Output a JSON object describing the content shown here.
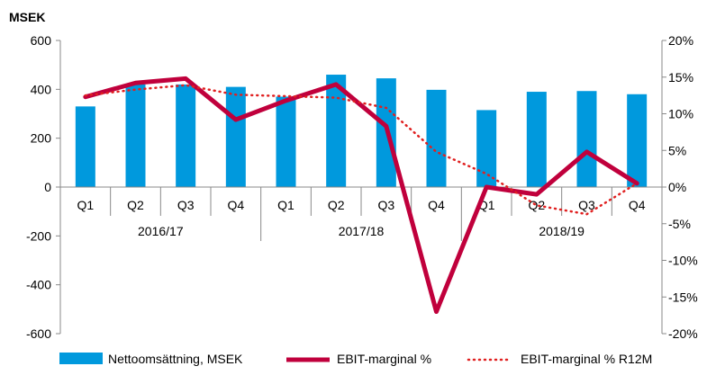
{
  "chart_data": {
    "type": "bar",
    "ylabel_left": "MSEK",
    "y_left": {
      "min": -600,
      "max": 600,
      "ticks": [
        600,
        400,
        200,
        0,
        -200,
        -400,
        -600
      ]
    },
    "y_right": {
      "min": -20,
      "max": 20,
      "ticks": [
        "20%",
        "15%",
        "10%",
        "5%",
        "0%",
        "-5%",
        "-10%",
        "-15%",
        "-20%"
      ]
    },
    "categories": [
      "Q1",
      "Q2",
      "Q3",
      "Q4",
      "Q1",
      "Q2",
      "Q3",
      "Q4",
      "Q1",
      "Q2",
      "Q3",
      "Q4"
    ],
    "groups": [
      "2016/17",
      "2017/18",
      "2018/19"
    ],
    "grid": false,
    "legend_position": "bottom",
    "series": [
      {
        "name": "Nettoomsättning, MSEK",
        "type": "bar",
        "axis": "left",
        "color": "#0099dd",
        "values": [
          330,
          420,
          420,
          410,
          370,
          460,
          445,
          398,
          315,
          390,
          393,
          380
        ]
      },
      {
        "name": "EBIT-marginal %",
        "type": "line",
        "axis": "right",
        "color": "#c0003c",
        "values": [
          12.3,
          14.2,
          14.8,
          9.2,
          11.8,
          14.0,
          8.3,
          -17.0,
          0.0,
          -1.0,
          4.8,
          0.5
        ]
      },
      {
        "name": "EBIT-marginal % R12M",
        "type": "dotted-line",
        "axis": "right",
        "color": "#e02020",
        "values": [
          12.5,
          13.3,
          13.9,
          12.6,
          12.4,
          12.2,
          10.8,
          4.8,
          1.8,
          -2.5,
          -3.7,
          0.5
        ]
      }
    ]
  }
}
